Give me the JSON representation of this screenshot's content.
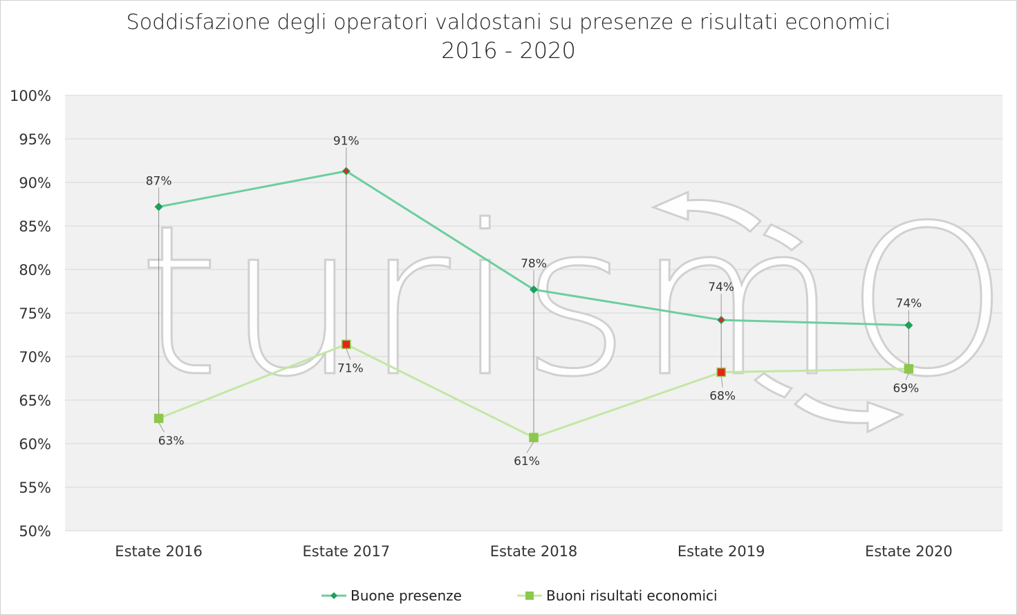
{
  "chart_data": {
    "type": "line",
    "title": "Soddisfazione degli operatori valdostani su presenze e risultati economici",
    "subtitle": "2016 - 2020",
    "categories": [
      "Estate 2016",
      "Estate 2017",
      "Estate 2018",
      "Estate 2019",
      "Estate 2020"
    ],
    "series": [
      {
        "name": "Buone presenze",
        "values": [
          87.2,
          91.3,
          77.7,
          74.2,
          73.6
        ],
        "labels": [
          "87%",
          "91%",
          "78%",
          "74%",
          "74%"
        ],
        "color": "#6cce9e",
        "marker": "diamond",
        "marker_color": "#1fa05a"
      },
      {
        "name": "Buoni risultati economici",
        "values": [
          62.9,
          71.4,
          60.7,
          68.2,
          68.6
        ],
        "labels": [
          "63%",
          "71%",
          "61%",
          "68%",
          "69%"
        ],
        "color": "#c4e6a4",
        "marker": "square",
        "marker_color": "#8cc84b"
      }
    ],
    "ylim": [
      50,
      100
    ],
    "yticks": [
      "50%",
      "55%",
      "60%",
      "65%",
      "70%",
      "75%",
      "80%",
      "85%",
      "90%",
      "95%",
      "100%"
    ],
    "xlabel": "",
    "ylabel": "",
    "grid": true,
    "legend_position": "bottom",
    "highlight_color": "#e8231c",
    "watermark": "turismOK"
  }
}
